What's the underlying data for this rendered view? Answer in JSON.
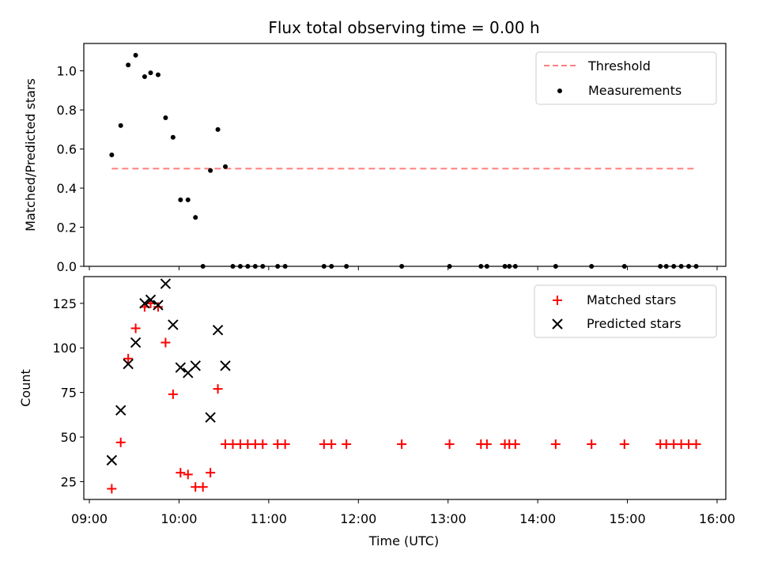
{
  "chart_data": [
    {
      "type": "scatter",
      "title": "Flux total observing time = 0.00 h",
      "xlabel": "",
      "ylabel": "Matched/Predicted stars",
      "xlim": [
        "09:00",
        "16:00"
      ],
      "ylim": [
        0,
        1.14
      ],
      "yticks": [
        "0.0",
        "0.2",
        "0.4",
        "0.6",
        "0.8",
        "1.0"
      ],
      "legend_position": "top-right",
      "series": [
        {
          "name": "Threshold",
          "kind": "line",
          "style": "dashed",
          "color": "#ff7f7f",
          "x": [
            "09:15",
            "15:47"
          ],
          "y": [
            0.5,
            0.5
          ]
        },
        {
          "name": "Measurements",
          "kind": "scatter",
          "marker": "dot",
          "color": "#000000",
          "x": [
            "09:15",
            "09:21",
            "09:26",
            "09:31",
            "09:37",
            "09:41",
            "09:46",
            "09:51",
            "09:56",
            "10:01",
            "10:06",
            "10:11",
            "10:16",
            "10:21",
            "10:26",
            "10:31",
            "10:36",
            "10:41",
            "10:46",
            "10:51",
            "10:56",
            "11:06",
            "11:11",
            "11:37",
            "11:42",
            "11:52",
            "12:29",
            "13:01",
            "13:22",
            "13:26",
            "13:38",
            "13:41",
            "13:45",
            "14:12",
            "14:36",
            "14:58",
            "15:22",
            "15:26",
            "15:31",
            "15:36",
            "15:41",
            "15:46"
          ],
          "y": [
            0.57,
            0.72,
            1.03,
            1.08,
            0.97,
            0.99,
            0.98,
            0.76,
            0.66,
            0.34,
            0.34,
            0.25,
            0.0,
            0.49,
            0.7,
            0.51,
            0.0,
            0.0,
            0.0,
            0.0,
            0.0,
            0.0,
            0.0,
            0.0,
            0.0,
            0.0,
            0.0,
            0.0,
            0.0,
            0.0,
            0.0,
            0.0,
            0.0,
            0.0,
            0.0,
            0.0,
            0.0,
            0.0,
            0.0,
            0.0,
            0.0,
            0.0
          ]
        }
      ]
    },
    {
      "type": "scatter",
      "title": "",
      "xlabel": "Time (UTC)",
      "ylabel": "Count",
      "xlim": [
        "09:00",
        "16:00"
      ],
      "ylim": [
        15,
        140
      ],
      "xticks": [
        "09:00",
        "10:00",
        "11:00",
        "12:00",
        "13:00",
        "14:00",
        "15:00",
        "16:00"
      ],
      "yticks": [
        "25",
        "50",
        "75",
        "100",
        "125"
      ],
      "legend_position": "top-right",
      "series": [
        {
          "name": "Matched stars",
          "kind": "scatter",
          "marker": "plus",
          "color": "#ff0000",
          "x": [
            "09:15",
            "09:21",
            "09:26",
            "09:31",
            "09:37",
            "09:41",
            "09:46",
            "09:51",
            "09:56",
            "10:01",
            "10:06",
            "10:11",
            "10:16",
            "10:21",
            "10:26",
            "10:31",
            "10:36",
            "10:41",
            "10:46",
            "10:51",
            "10:56",
            "11:06",
            "11:11",
            "11:37",
            "11:42",
            "11:52",
            "12:29",
            "13:01",
            "13:22",
            "13:26",
            "13:38",
            "13:41",
            "13:45",
            "14:12",
            "14:36",
            "14:58",
            "15:22",
            "15:26",
            "15:31",
            "15:36",
            "15:41",
            "15:46"
          ],
          "y": [
            21,
            47,
            94,
            111,
            123,
            125,
            123,
            103,
            74,
            30,
            29,
            22,
            22,
            30,
            77,
            46,
            46,
            46,
            46,
            46,
            46,
            46,
            46,
            46,
            46,
            46,
            46,
            46,
            46,
            46,
            46,
            46,
            46,
            46,
            46,
            46,
            46,
            46,
            46,
            46,
            46,
            46
          ]
        },
        {
          "name": "Predicted stars",
          "kind": "scatter",
          "marker": "x",
          "color": "#000000",
          "x": [
            "09:15",
            "09:21",
            "09:26",
            "09:31",
            "09:37",
            "09:41",
            "09:46",
            "09:51",
            "09:56",
            "10:01",
            "10:06",
            "10:11",
            "10:21",
            "10:26",
            "10:31"
          ],
          "y": [
            37,
            65,
            91,
            103,
            125,
            127,
            124,
            136,
            113,
            89,
            86,
            90,
            61,
            110,
            90
          ]
        }
      ]
    }
  ]
}
